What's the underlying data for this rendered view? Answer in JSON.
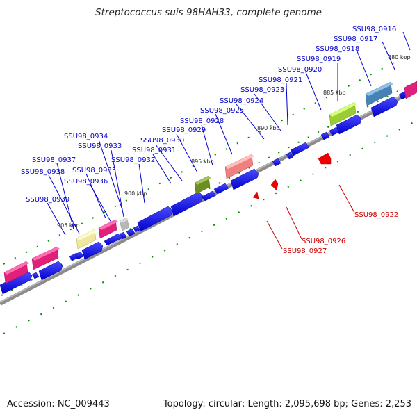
{
  "title": "Streptococcus suis 98HAH33, complete genome",
  "accession": "Accession: NC_009443",
  "summary": "Topology: circular; Length: 2,095,698 bp; Genes: 2,253",
  "colors": {
    "backbone": "#8c8c8c",
    "forward_gene": "#0000ee",
    "reverse_gene": "#ee0000",
    "tick": "#008800",
    "label_forward": "#0000cc",
    "label_reverse": "#cc0000"
  },
  "scale_labels": [
    "880 kbp",
    "885 kbp",
    "890 kbp",
    "895 kbp",
    "900 kbp",
    "905 kbp"
  ],
  "gene_labels": {
    "g0916": "SSU98_0916",
    "g0917": "SSU98_0917",
    "g0918": "SSU98_0918",
    "g0919": "SSU98_0919",
    "g0920": "SSU98_0920",
    "g0921": "SSU98_0921",
    "g0923": "SSU98_0923",
    "g0924": "SSU98_0924",
    "g0925": "SSU98_0925",
    "g0928": "SSU98_0928",
    "g0929": "SSU98_0929",
    "g0930": "SSU98_0930",
    "g0931": "SSU98_0931",
    "g0932": "SSU98_0932",
    "g0933": "SSU98_0933",
    "g0934": "SSU98_0934",
    "g0935": "SSU98_0935",
    "g0936": "SSU98_0936",
    "g0937": "SSU98_0937",
    "g0938": "SSU98_0938",
    "g0939": "SSU98_0939",
    "g0922": "SSU98_0922",
    "g0926": "SSU98_0926",
    "g0927": "SSU98_0927"
  }
}
